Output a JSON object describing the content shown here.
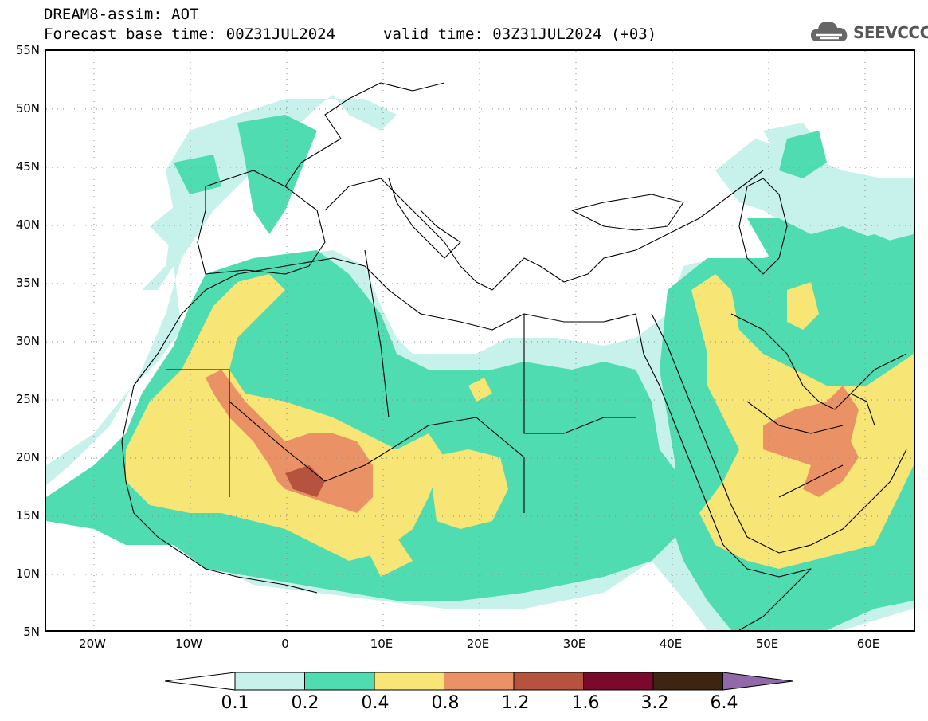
{
  "header": {
    "title": "DREAM8-assim: AOT",
    "forecast_base": "Forecast base time: 00Z31JUL2024",
    "valid_time": "valid time: 03Z31JUL2024 (+03)"
  },
  "logo": {
    "text": "SEEVCCC",
    "icon": "cloud-icon"
  },
  "map": {
    "y_labels": [
      "55N",
      "50N",
      "45N",
      "40N",
      "35N",
      "30N",
      "25N",
      "20N",
      "15N",
      "10N",
      "5N"
    ],
    "x_labels": [
      "20W",
      "10W",
      "0",
      "10E",
      "20E",
      "30E",
      "40E",
      "50E",
      "60E"
    ],
    "lat_range": [
      5,
      55
    ],
    "lon_range": [
      -25,
      65
    ]
  },
  "colorbar": {
    "labels": [
      "0.1",
      "0.2",
      "0.4",
      "0.8",
      "1.2",
      "1.6",
      "3.2",
      "6.4"
    ],
    "colors": [
      "#c7f2ec",
      "#4fdcb0",
      "#f7e576",
      "#ea9266",
      "#b6533f",
      "#7a0a2b",
      "#3d2512"
    ],
    "under_color": "#ffffff",
    "over_color": "#9168a8"
  }
}
